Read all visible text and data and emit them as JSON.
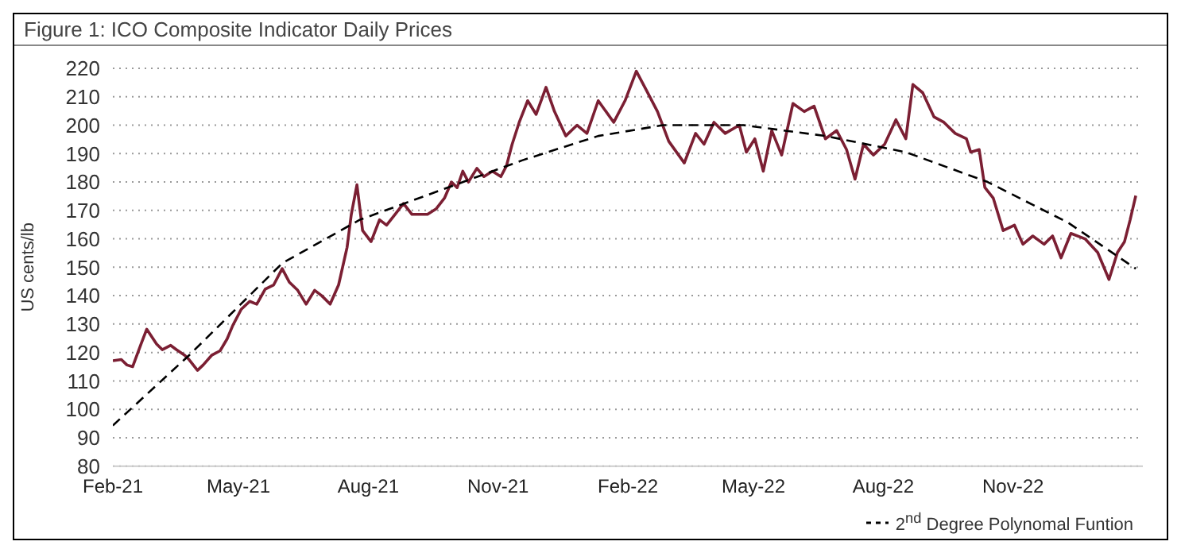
{
  "chart_data": {
    "type": "line",
    "title": "Figure 1: ICO Composite Indicator Daily Prices",
    "ylabel": "US cents/lb",
    "xlim": [
      "2021-02-01",
      "2023-02-01"
    ],
    "xticks": [
      {
        "value": "2021-02-01",
        "label": "Feb-21"
      },
      {
        "value": "2021-05-01",
        "label": "May-21"
      },
      {
        "value": "2021-08-01",
        "label": "Aug-21"
      },
      {
        "value": "2021-11-01",
        "label": "Nov-21"
      },
      {
        "value": "2022-02-01",
        "label": "Feb-22"
      },
      {
        "value": "2022-05-01",
        "label": "May-22"
      },
      {
        "value": "2022-08-01",
        "label": "Aug-22"
      },
      {
        "value": "2022-11-01",
        "label": "Nov-22"
      }
    ],
    "ylim": [
      80,
      220
    ],
    "yticks": [
      80,
      90,
      100,
      110,
      120,
      130,
      140,
      150,
      160,
      170,
      180,
      190,
      200,
      210,
      220
    ],
    "grid": "y",
    "legend": "bottom right",
    "marker": "none",
    "series": [
      {
        "color": "#7b1f33",
        "line_style": "solid",
        "x": [
          "2021-02-01",
          "2021-02-07",
          "2021-02-11",
          "2021-02-15",
          "2021-02-21",
          "2021-02-25",
          "2021-03-04",
          "2021-03-08",
          "2021-03-14",
          "2021-03-18",
          "2021-03-24",
          "2021-03-27",
          "2021-04-02",
          "2021-04-06",
          "2021-04-12",
          "2021-04-18",
          "2021-04-23",
          "2021-04-27",
          "2021-05-03",
          "2021-05-09",
          "2021-05-14",
          "2021-05-20",
          "2021-05-26",
          "2021-06-01",
          "2021-06-06",
          "2021-06-12",
          "2021-06-18",
          "2021-06-24",
          "2021-06-29",
          "2021-07-05",
          "2021-07-11",
          "2021-07-17",
          "2021-07-20",
          "2021-07-24",
          "2021-07-28",
          "2021-08-03",
          "2021-08-09",
          "2021-08-14",
          "2021-08-20",
          "2021-08-26",
          "2021-09-01",
          "2021-09-06",
          "2021-09-12",
          "2021-09-18",
          "2021-09-24",
          "2021-09-29",
          "2021-10-03",
          "2021-10-07",
          "2021-10-11",
          "2021-10-17",
          "2021-10-22",
          "2021-10-28",
          "2021-11-03",
          "2021-11-07",
          "2021-11-11",
          "2021-11-16",
          "2021-11-22",
          "2021-11-28",
          "2021-12-05",
          "2021-12-11",
          "2021-12-19",
          "2021-12-27",
          "2022-01-03",
          "2022-01-11",
          "2022-01-22",
          "2022-01-30",
          "2022-02-07",
          "2022-02-14",
          "2022-02-22",
          "2022-03-02",
          "2022-03-13",
          "2022-03-21",
          "2022-03-27",
          "2022-04-03",
          "2022-04-11",
          "2022-04-21",
          "2022-04-26",
          "2022-05-02",
          "2022-05-08",
          "2022-05-14",
          "2022-05-21",
          "2022-05-29",
          "2022-06-06",
          "2022-06-13",
          "2022-06-21",
          "2022-06-29",
          "2022-07-06",
          "2022-07-12",
          "2022-07-18",
          "2022-07-25",
          "2022-08-02",
          "2022-08-10",
          "2022-08-17",
          "2022-08-22",
          "2022-08-29",
          "2022-09-06",
          "2022-09-13",
          "2022-09-21",
          "2022-09-29",
          "2022-10-02",
          "2022-10-08",
          "2022-10-12",
          "2022-10-18",
          "2022-10-25",
          "2022-11-02",
          "2022-11-08",
          "2022-11-15",
          "2022-11-23",
          "2022-11-29",
          "2022-12-05",
          "2022-12-12",
          "2022-12-22",
          "2022-12-31",
          "2023-01-08",
          "2023-01-14",
          "2023-01-19",
          "2023-01-23",
          "2023-01-27"
        ],
        "values": [
          117.1,
          117.5,
          115.6,
          115,
          123,
          128.2,
          123,
          121,
          122.5,
          121,
          119,
          117.5,
          113.7,
          115.6,
          119,
          120.6,
          124.8,
          129.5,
          135.2,
          138,
          137,
          142.3,
          143.8,
          149.5,
          144.8,
          141.9,
          137,
          141.9,
          140,
          137,
          143.8,
          157,
          168.6,
          179,
          162.9,
          159,
          166.7,
          164.8,
          168.6,
          172.4,
          168.6,
          168.6,
          168.6,
          170.5,
          174.3,
          180,
          178,
          183.8,
          180,
          184.8,
          181.9,
          183.8,
          181.9,
          185.7,
          193.3,
          201,
          208.6,
          203.8,
          213.3,
          204.8,
          196.2,
          200,
          197.1,
          208.6,
          201,
          208.6,
          219,
          212.4,
          204.8,
          194.3,
          186.7,
          197.1,
          193.3,
          201,
          197.1,
          200,
          190.5,
          195.2,
          183.8,
          198.1,
          189.5,
          207.6,
          204.8,
          206.7,
          195.2,
          198.1,
          191.4,
          181,
          193.3,
          189.5,
          193.3,
          201.9,
          195.2,
          214.3,
          211.4,
          202.9,
          201,
          197.1,
          195.2,
          190.5,
          191.4,
          178.1,
          174.3,
          162.9,
          164.8,
          158.1,
          161,
          158.1,
          161,
          153.3,
          161.9,
          160,
          155.2,
          145.7,
          155.2,
          159,
          166.7,
          175.2
        ]
      },
      {
        "name": "2$^{nd}$ Degree Polynomal Funtion",
        "color": "#000000",
        "line_style": "dashed",
        "x": [
          "2021-02-01",
          "2021-03-27",
          "2021-06-01",
          "2021-07-26",
          "2021-11-18",
          "2022-01-11",
          "2022-02-26",
          "2022-04-24",
          "2022-06-21",
          "2022-08-17",
          "2022-10-14",
          "2022-12-10",
          "2023-01-27"
        ],
        "values": [
          94.3,
          119,
          151.4,
          166.7,
          187.6,
          196.2,
          200,
          200,
          196.2,
          190.5,
          180,
          165.7,
          149.5
        ]
      }
    ]
  }
}
